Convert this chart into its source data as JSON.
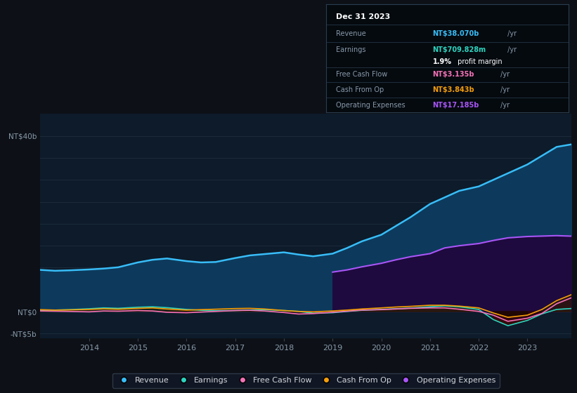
{
  "background_color": "#0d1117",
  "chart_bg_color": "#0d1b2a",
  "revenue_color": "#38bdf8",
  "revenue_fill": "#0d3a5c",
  "earnings_color": "#2dd4bf",
  "earnings_fill": "#0d3030",
  "fcf_color": "#f472b6",
  "fcf_fill": "#3a0a2a",
  "cashfromop_color": "#f59e0b",
  "cashfromop_fill": "#2a1a00",
  "opex_color": "#a855f7",
  "opex_fill": "#1e0a3e",
  "neg_earnings_fill": "#3a0a0a",
  "legend_bg": "#111827",
  "legend_border": "#374151",
  "years": [
    2013.0,
    2013.3,
    2013.6,
    2014.0,
    2014.3,
    2014.6,
    2015.0,
    2015.3,
    2015.6,
    2016.0,
    2016.3,
    2016.6,
    2017.0,
    2017.3,
    2017.6,
    2018.0,
    2018.3,
    2018.6,
    2019.0,
    2019.3,
    2019.6,
    2020.0,
    2020.3,
    2020.6,
    2021.0,
    2021.3,
    2021.6,
    2022.0,
    2022.3,
    2022.6,
    2023.0,
    2023.3,
    2023.6,
    2023.9
  ],
  "revenue": [
    9.5,
    9.3,
    9.4,
    9.6,
    9.8,
    10.1,
    11.2,
    11.8,
    12.1,
    11.5,
    11.2,
    11.3,
    12.2,
    12.8,
    13.1,
    13.5,
    13.0,
    12.6,
    13.2,
    14.5,
    16.0,
    17.5,
    19.5,
    21.5,
    24.5,
    26.0,
    27.5,
    28.5,
    30.0,
    31.5,
    33.5,
    35.5,
    37.5,
    38.07
  ],
  "earnings": [
    0.3,
    0.35,
    0.45,
    0.65,
    0.85,
    0.75,
    1.0,
    1.1,
    0.9,
    0.5,
    0.3,
    0.2,
    0.25,
    0.35,
    0.45,
    0.25,
    0.05,
    -0.35,
    -0.25,
    0.05,
    0.3,
    0.5,
    0.65,
    0.8,
    1.1,
    1.3,
    1.1,
    0.5,
    -1.8,
    -3.2,
    -2.0,
    -0.5,
    0.5,
    0.71
  ],
  "fcf": [
    0.15,
    0.1,
    0.05,
    -0.05,
    0.15,
    0.1,
    0.25,
    0.15,
    -0.15,
    -0.25,
    -0.1,
    0.05,
    0.25,
    0.3,
    0.15,
    -0.2,
    -0.55,
    -0.45,
    -0.15,
    0.1,
    0.35,
    0.45,
    0.6,
    0.75,
    0.85,
    0.85,
    0.55,
    0.05,
    -0.8,
    -2.2,
    -1.5,
    -0.4,
    1.8,
    3.135
  ],
  "cashfromop": [
    0.45,
    0.35,
    0.4,
    0.5,
    0.65,
    0.55,
    0.75,
    0.85,
    0.6,
    0.35,
    0.45,
    0.55,
    0.7,
    0.75,
    0.6,
    0.25,
    0.05,
    -0.05,
    0.15,
    0.35,
    0.6,
    0.85,
    1.05,
    1.2,
    1.45,
    1.45,
    1.25,
    0.85,
    -0.3,
    -1.3,
    -0.8,
    0.5,
    2.5,
    3.843
  ],
  "opex": [
    0.0,
    0.0,
    0.0,
    0.0,
    0.0,
    0.0,
    0.0,
    0.0,
    0.0,
    0.0,
    0.0,
    0.0,
    0.0,
    0.0,
    0.0,
    0.0,
    0.0,
    0.0,
    9.0,
    9.5,
    10.2,
    11.0,
    11.8,
    12.5,
    13.2,
    14.5,
    15.0,
    15.5,
    16.2,
    16.8,
    17.1,
    17.2,
    17.3,
    17.185
  ],
  "ylim_min": -6.0,
  "ylim_max": 45.0,
  "scale": 1000000000.0,
  "tooltip": {
    "date": "Dec 31 2023",
    "revenue_label": "Revenue",
    "revenue_val": "NT$38.070b",
    "revenue_suffix": " /yr",
    "earnings_label": "Earnings",
    "earnings_val": "NT$709.828m",
    "earnings_suffix": " /yr",
    "profit_pct": "1.9%",
    "profit_text": " profit margin",
    "fcf_label": "Free Cash Flow",
    "fcf_val": "NT$3.135b",
    "fcf_suffix": " /yr",
    "cashfromop_label": "Cash From Op",
    "cashfromop_val": "NT$3.843b",
    "cashfromop_suffix": " /yr",
    "opex_label": "Operating Expenses",
    "opex_val": "NT$17.185b",
    "opex_suffix": " /yr"
  },
  "legend_items": [
    {
      "label": "Revenue",
      "color": "#38bdf8"
    },
    {
      "label": "Earnings",
      "color": "#2dd4bf"
    },
    {
      "label": "Free Cash Flow",
      "color": "#f472b6"
    },
    {
      "label": "Cash From Op",
      "color": "#f59e0b"
    },
    {
      "label": "Operating Expenses",
      "color": "#a855f7"
    }
  ],
  "xtick_years": [
    2014,
    2015,
    2016,
    2017,
    2018,
    2019,
    2020,
    2021,
    2022,
    2023
  ],
  "ytick_vals": [
    -5.0,
    0.0,
    5.0,
    10.0,
    15.0,
    20.0,
    25.0,
    30.0,
    35.0,
    40.0
  ],
  "ytick_show": {
    "-5.0": "-NT$5b",
    "0.0": "NT$0",
    "40.0": "NT$40b"
  }
}
